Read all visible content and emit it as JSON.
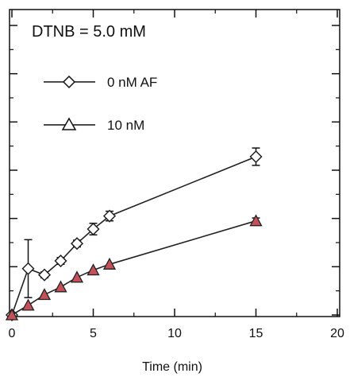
{
  "chart_data": {
    "type": "line",
    "title": "DTNB = 5.0 mM",
    "xlabel": "Time (min)",
    "ylabel": "",
    "xlim": [
      0,
      20
    ],
    "ylim": [
      0,
      6
    ],
    "x_ticks": [
      0,
      5,
      10,
      15,
      20
    ],
    "x_tick_labels": [
      "0",
      "5",
      "10",
      "15",
      "20"
    ],
    "y_ticks": [
      0,
      1,
      2,
      3,
      4,
      5,
      6
    ],
    "y_tick_labels": [],
    "grid": false,
    "legend_position": "top-left",
    "series": [
      {
        "name": "0 nM AF",
        "marker": "diamond",
        "color": "#222222",
        "fill": "#ffffff",
        "x": [
          0,
          1,
          2,
          3,
          4,
          5,
          6,
          15
        ],
        "y": [
          0.0,
          0.96,
          0.83,
          1.12,
          1.48,
          1.78,
          2.05,
          3.28
        ],
        "err": [
          0.0,
          0.6,
          0.06,
          0.07,
          0.07,
          0.12,
          0.1,
          0.18
        ]
      },
      {
        "name": "10 nM",
        "marker": "triangle",
        "color": "#222222",
        "fill": "#c4505a",
        "x": [
          0,
          1,
          2,
          3,
          4,
          5,
          6,
          15
        ],
        "y": [
          0.0,
          0.2,
          0.42,
          0.58,
          0.78,
          0.93,
          1.05,
          1.95
        ],
        "err": [
          0.0,
          0.0,
          0.0,
          0.0,
          0.0,
          0.0,
          0.0,
          0.06
        ]
      }
    ]
  }
}
